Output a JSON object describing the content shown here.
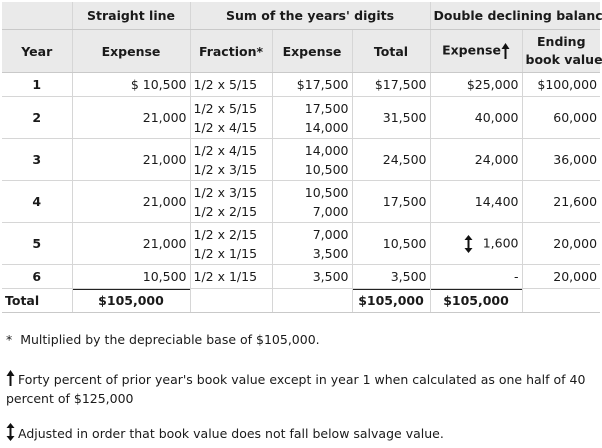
{
  "header": {
    "straight_line": "Straight line",
    "syd": "Sum of the years' digits",
    "ddb": "Double declining balance",
    "year": "Year",
    "expense_sl": "Expense",
    "fraction": "Fraction*",
    "expense_syd": "Expense",
    "total": "Total",
    "expense_ddb": "Expense",
    "ending_line1": "Ending",
    "ending_line2": "book value"
  },
  "rows": [
    {
      "year": "1",
      "sl": "$ 10,500",
      "fractions": [
        "1/2 x 5/15"
      ],
      "expenses": [
        "$17,500"
      ],
      "total": "$17,500",
      "ddb": "$25,000",
      "ddb_icon": "",
      "book": "$100,000"
    },
    {
      "year": "2",
      "sl": "21,000",
      "fractions": [
        "1/2 x 5/15",
        "1/2 x 4/15"
      ],
      "expenses": [
        "17,500",
        "14,000"
      ],
      "total": "31,500",
      "ddb": "40,000",
      "ddb_icon": "",
      "book": "60,000"
    },
    {
      "year": "3",
      "sl": "21,000",
      "fractions": [
        "1/2 x 4/15",
        "1/2 x 3/15"
      ],
      "expenses": [
        "14,000",
        "10,500"
      ],
      "total": "24,500",
      "ddb": "24,000",
      "ddb_icon": "",
      "book": "36,000"
    },
    {
      "year": "4",
      "sl": "21,000",
      "fractions": [
        "1/2 x 3/15",
        "1/2 x 2/15"
      ],
      "expenses": [
        "10,500",
        "7,000"
      ],
      "total": "17,500",
      "ddb": "14,400",
      "ddb_icon": "",
      "book": "21,600"
    },
    {
      "year": "5",
      "sl": "21,000",
      "fractions": [
        "1/2 x 2/15",
        "1/2 x 1/15"
      ],
      "expenses": [
        "7,000",
        "3,500"
      ],
      "total": "10,500",
      "ddb": "1,600",
      "ddb_icon": "up-down-arrow-icon",
      "book": "20,000"
    },
    {
      "year": "6",
      "sl": "10,500",
      "fractions": [
        "1/2 x 1/15"
      ],
      "expenses": [
        "3,500"
      ],
      "total": "3,500",
      "ddb": "-",
      "ddb_icon": "",
      "book": "20,000"
    }
  ],
  "totals": {
    "label": "Total",
    "sl": "$105,000",
    "syd": "$105,000",
    "ddb": "$105,000"
  },
  "notes": {
    "asterisk_symbol": "*",
    "asterisk_text": "Multiplied by the depreciable base of $105,000.",
    "up_arrow_text": "Forty percent of prior year's book value except in year 1 when calculated as one half of 40 percent of $125,000",
    "updown_arrow_text": "Adjusted in order that book value does not fall below salvage value."
  }
}
